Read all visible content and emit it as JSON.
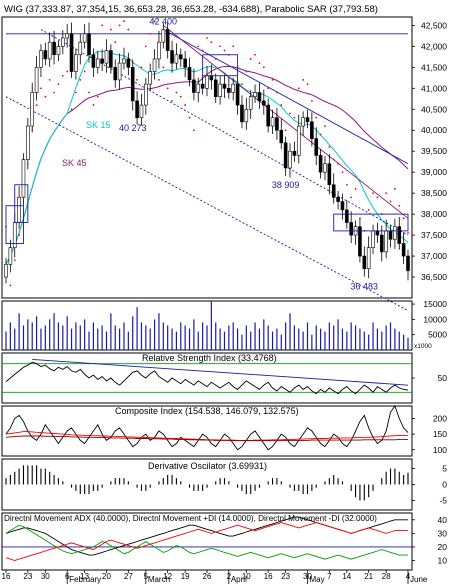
{
  "chart_data": {
    "type": "line",
    "title": "WIG (37,333.87, 37,354.15, 36,653.28, 36,653.28, -634.688), Parabolic SAR (37,793.58)",
    "x_tick_labels": [
      "16",
      "23",
      "30",
      "6",
      "13",
      "20",
      "27",
      "5",
      "12",
      "19",
      "26",
      "2",
      "10",
      "16",
      "23",
      "30",
      "7",
      "14",
      "21",
      "28",
      "4"
    ],
    "month_labels": [
      "February",
      "March",
      "April",
      "May",
      "June"
    ],
    "main": {
      "ylim": [
        36000,
        42700
      ],
      "y_ticks": [
        42500,
        42000,
        41500,
        41000,
        40500,
        40000,
        39500,
        39000,
        38500,
        38000,
        37500,
        37000,
        36500
      ],
      "series": [
        {
          "name": "WIG",
          "type": "candlestick"
        },
        {
          "name": "SK 15",
          "color": "#00c8d2"
        },
        {
          "name": "SK 45",
          "color": "#8b1a78"
        },
        {
          "name": "Parabolic SAR",
          "color": "#ff0000"
        }
      ],
      "close": [
        36800,
        37200,
        37800,
        38400,
        39300,
        40100,
        40900,
        41500,
        41900,
        41700,
        42100,
        41800,
        42000,
        42200,
        42300,
        41400,
        41800,
        42100,
        42300,
        41800,
        41500,
        41700,
        41600,
        41900,
        41500,
        41200,
        41600,
        41700,
        41500,
        40700,
        40300,
        40600,
        41100,
        41400,
        41700,
        42100,
        42400,
        41900,
        41600,
        41800,
        41700,
        41500,
        41200,
        40900,
        41100,
        41000,
        41300,
        41200,
        40800,
        41100,
        41000,
        40900,
        41100,
        40600,
        40200,
        40500,
        40800,
        40900,
        40700,
        40600,
        40100,
        40300,
        40000,
        39700,
        39100,
        39500,
        39400,
        40100,
        40300,
        40200,
        39800,
        39400,
        39000,
        39200,
        38700,
        38400,
        38300,
        38100,
        37800,
        37500,
        37700,
        37000,
        36700,
        37200,
        37600,
        37500,
        37100,
        37600,
        37400,
        37700,
        37300,
        37000,
        36650
      ],
      "annotations": [
        {
          "text": "42 400",
          "x_index": 36,
          "value": 42400
        },
        {
          "text": "40 273",
          "x_index": 29,
          "value": 40273
        },
        {
          "text": "38 909",
          "x_index": 64,
          "value": 38909
        },
        {
          "text": "36 483",
          "x_index": 82,
          "value": 36483
        }
      ],
      "sk15_label": "SK 15",
      "sk45_label": "SK 45"
    },
    "volume": {
      "ylim": [
        0,
        16000
      ],
      "y_ticks": [
        15000,
        10000,
        5000
      ],
      "scale_note": "x1000",
      "values": [
        6000,
        9000,
        7000,
        12000,
        8000,
        10000,
        9000,
        11000,
        7000,
        8000,
        10000,
        12000,
        9000,
        8000,
        11000,
        7000,
        9000,
        8000,
        10000,
        6000,
        9000,
        7000,
        8000,
        6000,
        12000,
        8000,
        7000,
        9000,
        6000,
        11000,
        14000,
        9000,
        8000,
        7000,
        10000,
        12000,
        9000,
        8000,
        7000,
        6000,
        9000,
        8000,
        7000,
        10000,
        6000,
        9000,
        8000,
        16000,
        9000,
        7000,
        6000,
        8000,
        9000,
        7000,
        5000,
        8000,
        6000,
        9000,
        7000,
        10000,
        8000,
        6000,
        7000,
        5000,
        9000,
        12000,
        8000,
        7000,
        6000,
        9000,
        5000,
        8000,
        7000,
        6000,
        9000,
        8000,
        10000,
        7000,
        6000,
        9000,
        8000,
        7000,
        6000,
        5000,
        9000,
        7000,
        6000,
        8000,
        9000,
        7000,
        6000,
        5000,
        4000
      ]
    },
    "rsi": {
      "title": "Relative Strength Index (33.4768)",
      "ylim": [
        15,
        85
      ],
      "y_ticks": [
        50
      ],
      "levels": [
        70,
        30
      ],
      "values": [
        45,
        50,
        55,
        60,
        65,
        68,
        72,
        70,
        66,
        68,
        63,
        60,
        65,
        62,
        66,
        60,
        58,
        62,
        55,
        50,
        54,
        48,
        52,
        46,
        50,
        44,
        40,
        46,
        52,
        58,
        60,
        54,
        50,
        56,
        60,
        52,
        48,
        44,
        50,
        46,
        42,
        48,
        44,
        40,
        46,
        42,
        38,
        44,
        40,
        36,
        40,
        44,
        38,
        34,
        40,
        46,
        42,
        38,
        34,
        40,
        44,
        36,
        32,
        38,
        34,
        30,
        36,
        40,
        34,
        38,
        32,
        28,
        34,
        30,
        36,
        32,
        28,
        34,
        38,
        32,
        28,
        34,
        40,
        36,
        30,
        38,
        34,
        30,
        36,
        40,
        36,
        34,
        33
      ]
    },
    "composite": {
      "title": "Composite Index (154.538, 146.079, 132.575)",
      "ylim": [
        80,
        240
      ],
      "y_ticks": [
        200,
        150,
        100
      ],
      "series": [
        {
          "name": "Composite Index",
          "color": "#000000",
          "values": [
            150,
            170,
            200,
            210,
            190,
            160,
            140,
            130,
            150,
            180,
            160,
            140,
            120,
            140,
            160,
            170,
            150,
            130,
            120,
            140,
            160,
            180,
            150,
            130,
            140,
            160,
            170,
            150,
            130,
            110,
            120,
            140,
            150,
            130,
            140,
            160,
            150,
            130,
            110,
            120,
            140,
            130,
            120,
            110,
            130,
            150,
            140,
            120,
            110,
            130,
            150,
            140,
            120,
            100,
            110,
            130,
            150,
            160,
            140,
            120,
            100,
            110,
            130,
            150,
            140,
            120,
            110,
            130,
            150,
            170,
            160,
            140,
            120,
            110,
            130,
            150,
            140,
            120,
            110,
            130,
            160,
            190,
            210,
            170,
            140,
            120,
            130,
            160,
            220,
            240,
            200,
            170,
            155
          ]
        },
        {
          "name": "Average 1",
          "color": "#ff0000",
          "values": [
            150,
            152,
            154,
            156,
            158,
            158,
            157,
            156,
            155,
            154,
            153,
            152,
            151,
            150,
            149,
            148,
            147,
            147,
            146,
            146,
            145,
            145,
            144,
            144,
            143,
            143,
            142,
            142,
            141,
            141,
            140,
            140,
            139,
            139,
            138,
            138,
            137,
            137,
            136,
            136,
            135,
            135,
            134,
            134,
            133,
            133,
            132,
            132,
            132,
            131,
            131,
            131,
            131,
            130,
            130,
            130,
            130,
            131,
            131,
            131,
            131,
            132,
            132,
            132,
            133,
            133,
            133,
            134,
            134,
            135,
            135,
            136,
            136,
            136,
            137,
            137,
            137,
            138,
            138,
            138,
            139,
            139,
            140,
            140,
            141,
            141,
            142,
            143,
            144,
            145,
            146,
            146,
            146
          ]
        },
        {
          "name": "Average 2",
          "color": "#8b0000",
          "values": [
            140,
            141,
            142,
            143,
            144,
            144,
            144,
            144,
            144,
            143,
            143,
            143,
            142,
            142,
            142,
            141,
            141,
            141,
            140,
            140,
            140,
            139,
            139,
            139,
            138,
            138,
            138,
            137,
            137,
            137,
            136,
            136,
            136,
            135,
            135,
            135,
            134,
            134,
            134,
            133,
            133,
            133,
            132,
            132,
            132,
            131,
            131,
            131,
            130,
            130,
            130,
            130,
            129,
            129,
            129,
            129,
            129,
            129,
            129,
            129,
            129,
            129,
            129,
            129,
            130,
            130,
            130,
            130,
            130,
            130,
            131,
            131,
            131,
            131,
            131,
            131,
            131,
            131,
            131,
            131,
            131,
            131,
            132,
            132,
            132,
            132,
            132,
            132,
            132,
            132,
            133,
            133,
            133
          ]
        }
      ]
    },
    "derivative": {
      "title": "Derivative Oscilator (3.69931)",
      "ylim": [
        -8,
        8
      ],
      "y_ticks": [
        5,
        0,
        -5
      ],
      "values": [
        2,
        3,
        4,
        5,
        6,
        6,
        6,
        6,
        5,
        5,
        4,
        3,
        2,
        1,
        0,
        -1,
        -2,
        -3,
        -3,
        -3,
        -2,
        -2,
        -1,
        0,
        1,
        2,
        2,
        2,
        1,
        0,
        -1,
        -2,
        -2,
        -1,
        0,
        1,
        2,
        3,
        3,
        2,
        1,
        0,
        -1,
        -2,
        -2,
        -2,
        -1,
        0,
        1,
        2,
        2,
        1,
        0,
        -1,
        -2,
        -3,
        -3,
        -2,
        -1,
        0,
        1,
        2,
        2,
        1,
        0,
        -1,
        -2,
        -2,
        -3,
        -3,
        -2,
        -1,
        0,
        1,
        2,
        3,
        2,
        1,
        0,
        -2,
        -4,
        -5,
        -5,
        -4,
        -2,
        0,
        2,
        4,
        5,
        5,
        4,
        3,
        3.7
      ]
    },
    "dmi": {
      "title": "Directnl Movement ADX (40.0000), Directnl Movement +DI (14.0000), Directnl Movement -DI (32.0000)",
      "ylim": [
        3,
        45
      ],
      "y_ticks": [
        40,
        30,
        20,
        10
      ],
      "series": [
        {
          "name": "Directnl Movement ADX",
          "color": "#000000",
          "values": [
            30,
            31,
            32,
            33,
            34,
            34,
            33,
            32,
            31,
            30,
            28,
            26,
            24,
            22,
            20,
            18,
            17,
            16,
            15,
            14,
            14,
            15,
            16,
            17,
            18,
            19,
            20,
            21,
            22,
            23,
            24,
            25,
            26,
            27,
            28,
            29,
            30,
            31,
            32,
            33,
            34,
            35,
            36,
            36,
            35,
            34,
            33,
            32,
            31,
            30,
            29,
            28,
            28,
            29,
            30,
            31,
            32,
            33,
            34,
            35,
            36,
            37,
            38,
            39,
            40,
            41,
            42,
            42,
            41,
            40,
            39,
            38,
            37,
            36,
            35,
            34,
            33,
            32,
            31,
            30,
            31,
            32,
            33,
            34,
            35,
            36,
            37,
            38,
            39,
            40,
            40,
            40,
            40
          ]
        },
        {
          "name": "Directnl Movement +DI",
          "color": "#00a000",
          "values": [
            30,
            32,
            34,
            36,
            35,
            33,
            31,
            29,
            27,
            25,
            23,
            21,
            19,
            17,
            16,
            15,
            16,
            17,
            18,
            19,
            20,
            22,
            24,
            23,
            21,
            19,
            17,
            15,
            16,
            18,
            20,
            22,
            24,
            22,
            20,
            18,
            16,
            17,
            19,
            21,
            20,
            18,
            16,
            15,
            16,
            17,
            18,
            19,
            18,
            17,
            16,
            15,
            14,
            13,
            14,
            15,
            16,
            15,
            14,
            13,
            12,
            13,
            14,
            15,
            14,
            13,
            12,
            13,
            14,
            15,
            14,
            13,
            12,
            11,
            12,
            13,
            14,
            13,
            12,
            11,
            12,
            13,
            14,
            15,
            16,
            17,
            18,
            17,
            16,
            15,
            14,
            14,
            14
          ]
        },
        {
          "name": "Directnl Movement -DI",
          "color": "#ff0000",
          "values": [
            12,
            11,
            10,
            11,
            12,
            13,
            14,
            15,
            16,
            17,
            18,
            19,
            20,
            21,
            22,
            23,
            22,
            21,
            20,
            19,
            18,
            20,
            22,
            24,
            25,
            24,
            23,
            22,
            21,
            20,
            19,
            20,
            21,
            22,
            23,
            24,
            25,
            26,
            27,
            28,
            29,
            30,
            31,
            32,
            33,
            32,
            31,
            30,
            31,
            32,
            33,
            34,
            35,
            36,
            35,
            34,
            33,
            32,
            33,
            34,
            35,
            36,
            37,
            38,
            37,
            36,
            35,
            34,
            35,
            36,
            37,
            38,
            37,
            36,
            35,
            34,
            33,
            32,
            31,
            30,
            31,
            32,
            33,
            34,
            33,
            32,
            31,
            30,
            31,
            32,
            32,
            32,
            32
          ]
        }
      ]
    }
  }
}
